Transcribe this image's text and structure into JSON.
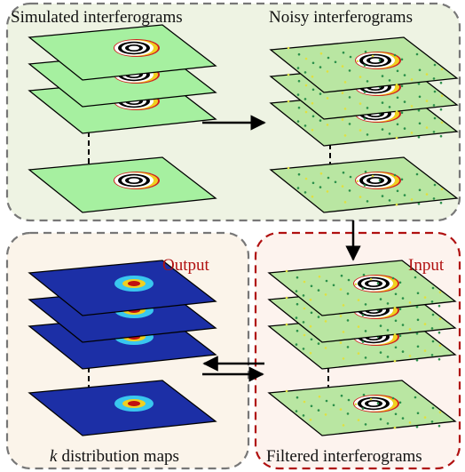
{
  "panels": [
    {
      "label": "Simulated interferograms"
    },
    {
      "label": "Noisy interferograms"
    },
    {
      "label_symbol": "k",
      "label": "distribution maps",
      "tag": "Output"
    },
    {
      "label": "Filtered interferograms",
      "tag": "Input"
    }
  ]
}
